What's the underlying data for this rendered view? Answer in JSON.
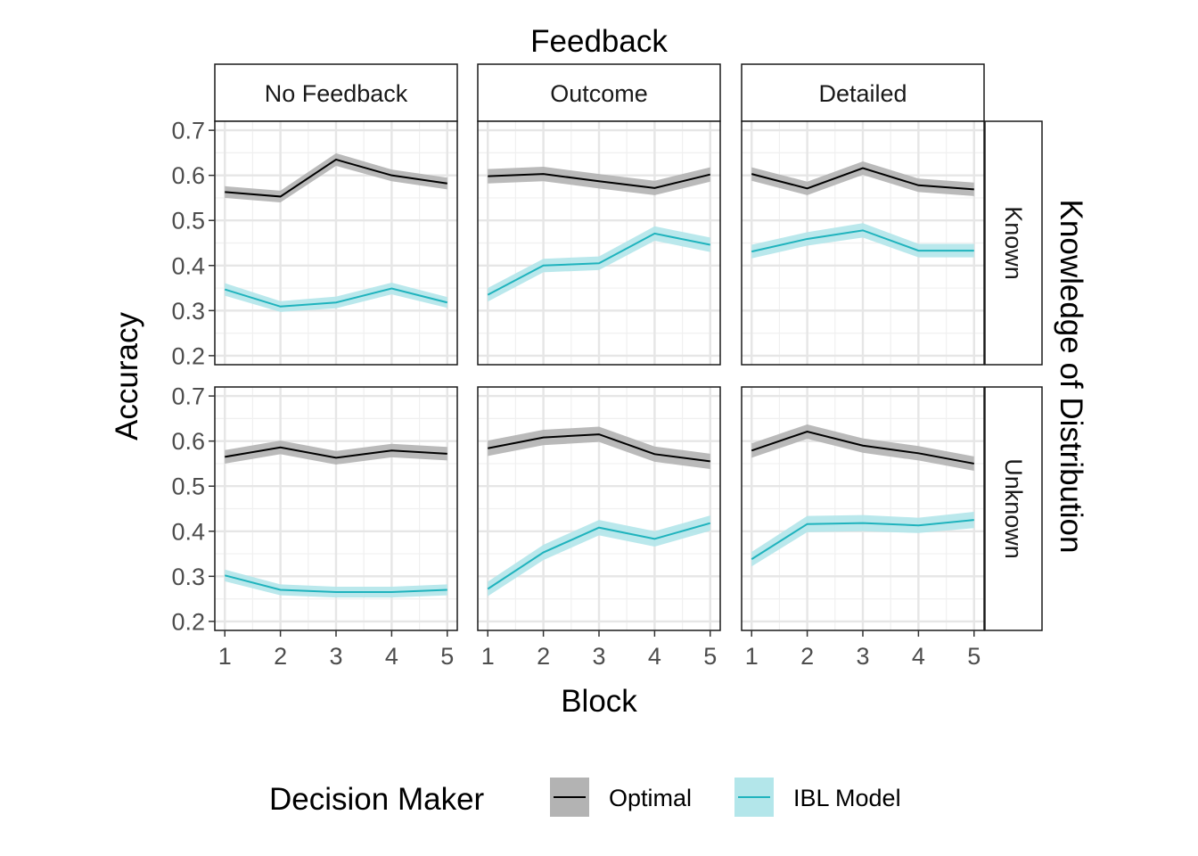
{
  "chart_data": {
    "type": "line",
    "facet_col_title": "Feedback",
    "facet_row_title": "Knowledge of Distribution",
    "facet_cols": [
      "No Feedback",
      "Outcome",
      "Detailed"
    ],
    "facet_rows": [
      "Known",
      "Unknown"
    ],
    "xlabel": "Block",
    "ylabel": "Accuracy",
    "x": [
      1,
      2,
      3,
      4,
      5
    ],
    "x_ticks": [
      "1",
      "2",
      "3",
      "4",
      "5"
    ],
    "ylim": [
      0.18,
      0.72
    ],
    "y_ticks": [
      "0.2",
      "0.3",
      "0.4",
      "0.5",
      "0.6",
      "0.7"
    ],
    "grid": true,
    "legend": {
      "title": "Decision Maker",
      "position": "bottom",
      "entries": [
        {
          "name": "Optimal",
          "line_color": "#000000",
          "ribbon_color": "#b3b3b3"
        },
        {
          "name": "IBL Model",
          "line_color": "#1fb3bd",
          "ribbon_color": "#b3e6ea"
        }
      ]
    },
    "panels": [
      {
        "col": "No Feedback",
        "row": "Known",
        "series": [
          {
            "name": "Optimal",
            "values": [
              0.563,
              0.553,
              0.635,
              0.6,
              0.582
            ],
            "ci": [
              0.013,
              0.013,
              0.014,
              0.013,
              0.013
            ]
          },
          {
            "name": "IBL Model",
            "values": [
              0.347,
              0.309,
              0.318,
              0.349,
              0.318
            ],
            "ci": [
              0.014,
              0.012,
              0.013,
              0.013,
              0.012
            ]
          }
        ]
      },
      {
        "col": "Outcome",
        "row": "Known",
        "series": [
          {
            "name": "Optimal",
            "values": [
              0.598,
              0.603,
              0.587,
              0.572,
              0.602
            ],
            "ci": [
              0.016,
              0.016,
              0.016,
              0.016,
              0.016
            ]
          },
          {
            "name": "IBL Model",
            "values": [
              0.335,
              0.4,
              0.405,
              0.471,
              0.446
            ],
            "ci": [
              0.015,
              0.015,
              0.015,
              0.016,
              0.016
            ]
          }
        ]
      },
      {
        "col": "Detailed",
        "row": "Known",
        "series": [
          {
            "name": "Optimal",
            "values": [
              0.603,
              0.571,
              0.616,
              0.578,
              0.569
            ],
            "ci": [
              0.015,
              0.015,
              0.015,
              0.015,
              0.015
            ]
          },
          {
            "name": "IBL Model",
            "values": [
              0.431,
              0.459,
              0.478,
              0.433,
              0.433
            ],
            "ci": [
              0.015,
              0.015,
              0.016,
              0.015,
              0.015
            ]
          }
        ]
      },
      {
        "col": "No Feedback",
        "row": "Unknown",
        "series": [
          {
            "name": "Optimal",
            "values": [
              0.565,
              0.586,
              0.563,
              0.579,
              0.572
            ],
            "ci": [
              0.015,
              0.015,
              0.015,
              0.015,
              0.015
            ]
          },
          {
            "name": "IBL Model",
            "values": [
              0.302,
              0.27,
              0.265,
              0.265,
              0.27
            ],
            "ci": [
              0.013,
              0.012,
              0.012,
              0.012,
              0.012
            ]
          }
        ]
      },
      {
        "col": "Outcome",
        "row": "Unknown",
        "series": [
          {
            "name": "Optimal",
            "values": [
              0.584,
              0.608,
              0.615,
              0.571,
              0.555
            ],
            "ci": [
              0.017,
              0.017,
              0.017,
              0.017,
              0.017
            ]
          },
          {
            "name": "IBL Model",
            "values": [
              0.272,
              0.353,
              0.408,
              0.383,
              0.418
            ],
            "ci": [
              0.016,
              0.017,
              0.017,
              0.017,
              0.017
            ]
          }
        ]
      },
      {
        "col": "Detailed",
        "row": "Unknown",
        "series": [
          {
            "name": "Optimal",
            "values": [
              0.579,
              0.621,
              0.59,
              0.573,
              0.55
            ],
            "ci": [
              0.016,
              0.016,
              0.016,
              0.016,
              0.016
            ]
          },
          {
            "name": "IBL Model",
            "values": [
              0.338,
              0.416,
              0.418,
              0.413,
              0.425
            ],
            "ci": [
              0.016,
              0.018,
              0.018,
              0.017,
              0.018
            ]
          }
        ]
      }
    ]
  }
}
